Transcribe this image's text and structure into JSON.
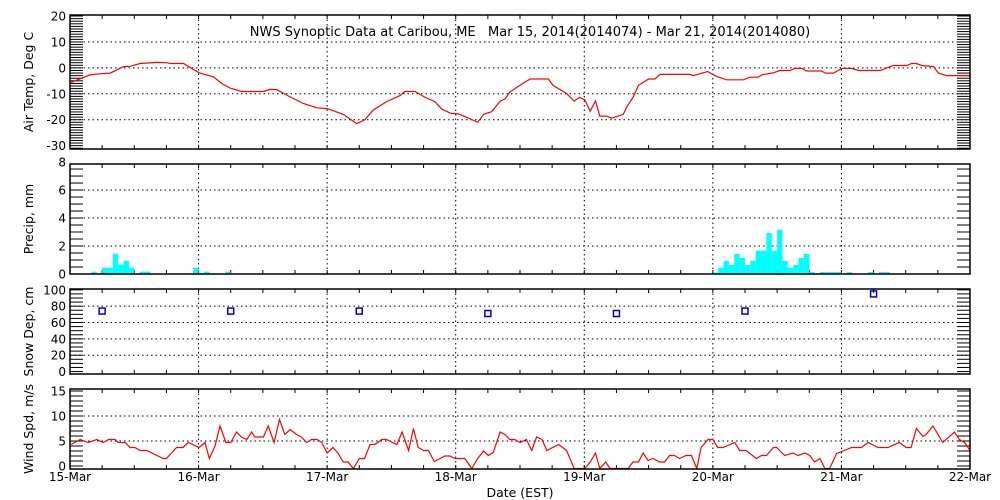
{
  "chart_data": [
    {
      "id": "temp",
      "type": "line",
      "title": "NWS Synoptic Data at Caribou, ME   Mar 15, 2014(2014074) - Mar 21, 2014(2014080)",
      "ylabel": "Air Temp, Deg C",
      "ylim": [
        -31.3,
        20.4
      ],
      "yticks": [
        20,
        10,
        0,
        -10,
        -20,
        -30
      ],
      "ytick_labels": [
        "20",
        "10",
        "0",
        "-10",
        "-20",
        "-30"
      ],
      "ygrid": [
        10,
        0,
        -10,
        -20
      ],
      "yminor": 1,
      "x_units": "hours since 15-Mar 00:00 EST",
      "color": "#ff0000",
      "points": [
        [
          0.2,
          -5.6
        ],
        [
          3.7,
          -2.7
        ],
        [
          5.6,
          -2.3
        ],
        [
          7.5,
          -2
        ],
        [
          10,
          0.5
        ],
        [
          11.2,
          0.6
        ],
        [
          13.1,
          1.7
        ],
        [
          16.2,
          2.1
        ],
        [
          18,
          2
        ],
        [
          18.7,
          1.7
        ],
        [
          21.2,
          1.7
        ],
        [
          22.7,
          -0.2
        ],
        [
          24.1,
          -1.9
        ],
        [
          26.8,
          -3.5
        ],
        [
          28.3,
          -6
        ],
        [
          29.9,
          -7.8
        ],
        [
          32,
          -9.1
        ],
        [
          36.1,
          -9.1
        ],
        [
          37.3,
          -8.3
        ],
        [
          38.6,
          -8.4
        ],
        [
          41,
          -11.1
        ],
        [
          43.6,
          -13.8
        ],
        [
          46.1,
          -15.4
        ],
        [
          48,
          -15.7
        ],
        [
          51,
          -17.9
        ],
        [
          53.5,
          -21.5
        ],
        [
          55,
          -20.1
        ],
        [
          56.6,
          -16.3
        ],
        [
          59.1,
          -13
        ],
        [
          61.6,
          -10.7
        ],
        [
          62.5,
          -9.1
        ],
        [
          64.4,
          -9.1
        ],
        [
          66.3,
          -11.4
        ],
        [
          68.1,
          -13
        ],
        [
          69.4,
          -15.9
        ],
        [
          71,
          -17.5
        ],
        [
          72.5,
          -17.8
        ],
        [
          74.1,
          -19.1
        ],
        [
          76.1,
          -21
        ],
        [
          77.2,
          -17.9
        ],
        [
          78.7,
          -16.9
        ],
        [
          80.3,
          -12.8
        ],
        [
          81.2,
          -12
        ],
        [
          82.1,
          -9.3
        ],
        [
          84,
          -6.7
        ],
        [
          85.9,
          -4.3
        ],
        [
          89.3,
          -4.3
        ],
        [
          90.2,
          -6.8
        ],
        [
          92.7,
          -9.9
        ],
        [
          94.1,
          -12.8
        ],
        [
          95.1,
          -11.4
        ],
        [
          96.1,
          -12.3
        ],
        [
          97.1,
          -16.7
        ],
        [
          98.1,
          -12.8
        ],
        [
          98.9,
          -18.6
        ],
        [
          100.2,
          -18.6
        ],
        [
          101.1,
          -19.4
        ],
        [
          103.3,
          -17.9
        ],
        [
          103.9,
          -15.1
        ],
        [
          105.1,
          -11.4
        ],
        [
          106.1,
          -6.8
        ],
        [
          108,
          -4.3
        ],
        [
          109.2,
          -4.3
        ],
        [
          110.1,
          -2.5
        ],
        [
          115.7,
          -2.5
        ],
        [
          116.4,
          -3
        ],
        [
          119,
          -1.4
        ],
        [
          120.7,
          -3.3
        ],
        [
          122.6,
          -4.6
        ],
        [
          125.7,
          -4.6
        ],
        [
          126.9,
          -3.6
        ],
        [
          128.5,
          -3.6
        ],
        [
          129.1,
          -2.7
        ],
        [
          131.3,
          -1.9
        ],
        [
          132.5,
          -1
        ],
        [
          134.4,
          -1
        ],
        [
          135.3,
          -0.2
        ],
        [
          136.6,
          -0.2
        ],
        [
          137.5,
          -1.2
        ],
        [
          140.3,
          -1.2
        ],
        [
          141,
          -2
        ],
        [
          142.5,
          -2
        ],
        [
          144.1,
          -0.2
        ],
        [
          145.9,
          -0.2
        ],
        [
          147.2,
          -1
        ],
        [
          151.2,
          -1
        ],
        [
          153.7,
          0.9
        ],
        [
          156.2,
          0.9
        ],
        [
          157.1,
          1.7
        ],
        [
          158,
          1.7
        ],
        [
          159,
          0.9
        ],
        [
          161.2,
          0.5
        ],
        [
          162.1,
          -2
        ],
        [
          163.6,
          -3
        ],
        [
          168,
          -3
        ]
      ]
    },
    {
      "id": "precip",
      "type": "bar",
      "ylabel": "Precip, mm",
      "ylim": [
        0,
        7.86
      ],
      "yticks": [
        8,
        6,
        4,
        2,
        0
      ],
      "ytick_labels": [
        "8",
        "6",
        "4",
        "2",
        "0"
      ],
      "ygrid": [
        6,
        4,
        2
      ],
      "yminor": 0.5,
      "x_units": "hour bin since 15-Mar 00:00 EST (1-hour bars)",
      "color": "#00ffff",
      "bars": [
        [
          4,
          0.17
        ],
        [
          6,
          0.45
        ],
        [
          7,
          0.45
        ],
        [
          8,
          1.45
        ],
        [
          9,
          0.67
        ],
        [
          10,
          0.95
        ],
        [
          11,
          0.45
        ],
        [
          13,
          0.17
        ],
        [
          14,
          0.17
        ],
        [
          23,
          0.45
        ],
        [
          25,
          0.17
        ],
        [
          29,
          0.17
        ],
        [
          120,
          0.1
        ],
        [
          121,
          0.45
        ],
        [
          122,
          0.93
        ],
        [
          123,
          0.64
        ],
        [
          124,
          1.43
        ],
        [
          125,
          1.14
        ],
        [
          126,
          0.64
        ],
        [
          127,
          0.93
        ],
        [
          128,
          1.67
        ],
        [
          129,
          1.67
        ],
        [
          130,
          2.93
        ],
        [
          131,
          1.67
        ],
        [
          132,
          3.17
        ],
        [
          133,
          0.93
        ],
        [
          134,
          0.45
        ],
        [
          135,
          0.64
        ],
        [
          136,
          1.14
        ],
        [
          137,
          1.43
        ],
        [
          138,
          0.14
        ],
        [
          140,
          0.14
        ],
        [
          141,
          0.14
        ],
        [
          142,
          0.14
        ],
        [
          143,
          0.14
        ],
        [
          145,
          0.14
        ],
        [
          149,
          0.14
        ],
        [
          151,
          0.14
        ],
        [
          152,
          0.14
        ]
      ]
    },
    {
      "id": "snow",
      "type": "scatter",
      "ylabel": "Snow Dep, cm",
      "ylim": [
        -3,
        101
      ],
      "yticks": [
        100,
        80,
        60,
        40,
        20,
        0
      ],
      "ytick_labels": [
        "100",
        "80",
        "60",
        "40",
        "20",
        "0"
      ],
      "ygrid": [
        80,
        60,
        40,
        20
      ],
      "yminor": 5,
      "x_units": "hours since 15-Mar 00:00 EST",
      "color": "#0000cc",
      "points": [
        [
          6,
          74
        ],
        [
          30,
          74
        ],
        [
          54,
          74
        ],
        [
          78,
          71
        ],
        [
          102,
          71
        ],
        [
          126,
          74
        ],
        [
          150,
          95
        ]
      ]
    },
    {
      "id": "wind",
      "type": "line",
      "ylabel": "Wind Spd, m/s",
      "ylim": [
        -0.6,
        15.4
      ],
      "yticks": [
        15,
        10,
        5,
        0
      ],
      "ytick_labels": [
        "15",
        "10",
        "5",
        "0"
      ],
      "ygrid": [
        10,
        5
      ],
      "yminor": 1,
      "x_units": "hours since 15-Mar 00:00 EST",
      "color": "#ff0000",
      "xlabel": "Date (EST)",
      "xtick_labels": [
        "15-Mar",
        "16-Mar",
        "17-Mar",
        "18-Mar",
        "19-Mar",
        "20-Mar",
        "21-Mar",
        "22-Mar"
      ],
      "points": [
        [
          0.2,
          4.3
        ],
        [
          1.9,
          5.3
        ],
        [
          3.4,
          4.7
        ],
        [
          5,
          5.3
        ],
        [
          6.2,
          4.7
        ],
        [
          7.2,
          5.3
        ],
        [
          8.4,
          5.3
        ],
        [
          9,
          4.7
        ],
        [
          10.3,
          4.7
        ],
        [
          11.2,
          3.7
        ],
        [
          12.1,
          3.7
        ],
        [
          13.1,
          3.1
        ],
        [
          14.3,
          3.1
        ],
        [
          17.4,
          1.5
        ],
        [
          18,
          1.5
        ],
        [
          19.9,
          3.7
        ],
        [
          21.1,
          3.7
        ],
        [
          22.1,
          4.7
        ],
        [
          24.1,
          3.7
        ],
        [
          25.2,
          4.7
        ],
        [
          26,
          1.5
        ],
        [
          27.1,
          4.1
        ],
        [
          28,
          8
        ],
        [
          29.1,
          4.7
        ],
        [
          30,
          4.7
        ],
        [
          31.1,
          6.8
        ],
        [
          32,
          5.8
        ],
        [
          33,
          5.3
        ],
        [
          33.9,
          6.8
        ],
        [
          34.5,
          5.8
        ],
        [
          36.1,
          5.8
        ],
        [
          37,
          8
        ],
        [
          38.1,
          4.7
        ],
        [
          39.1,
          9.3
        ],
        [
          40.1,
          6.3
        ],
        [
          41.1,
          7.3
        ],
        [
          42.3,
          6.3
        ],
        [
          43.2,
          5.8
        ],
        [
          44.2,
          4.7
        ],
        [
          45.1,
          5.3
        ],
        [
          46.1,
          5.3
        ],
        [
          47,
          4.7
        ],
        [
          48,
          2.6
        ],
        [
          49.1,
          3.7
        ],
        [
          50,
          2.6
        ],
        [
          51,
          0.8
        ],
        [
          51.9,
          0.8
        ],
        [
          52.9,
          -0.5
        ],
        [
          54,
          1.5
        ],
        [
          55,
          1.5
        ],
        [
          56,
          4.3
        ],
        [
          56.9,
          4.3
        ],
        [
          58.2,
          5.3
        ],
        [
          59.1,
          5.3
        ],
        [
          61,
          4.3
        ],
        [
          62,
          6.8
        ],
        [
          63.2,
          3.1
        ],
        [
          64.1,
          7.5
        ],
        [
          65,
          3.7
        ],
        [
          66,
          3.1
        ],
        [
          66.9,
          3.1
        ],
        [
          68,
          0.9
        ],
        [
          70,
          2
        ],
        [
          70.9,
          2
        ],
        [
          71.9,
          1.5
        ],
        [
          73.7,
          1.5
        ],
        [
          75,
          -0.5
        ],
        [
          76.1,
          1.5
        ],
        [
          77.2,
          3
        ],
        [
          78.1,
          2.1
        ],
        [
          79,
          2.7
        ],
        [
          80.3,
          6.8
        ],
        [
          81.2,
          6.3
        ],
        [
          82.1,
          5.3
        ],
        [
          83,
          5.3
        ],
        [
          84,
          4.7
        ],
        [
          85.2,
          5.3
        ],
        [
          86.2,
          3.1
        ],
        [
          87.1,
          5.8
        ],
        [
          88.1,
          5.3
        ],
        [
          89,
          3.1
        ],
        [
          91.2,
          4.3
        ],
        [
          92.7,
          3.1
        ],
        [
          94.1,
          -0.5
        ],
        [
          96.1,
          -0.5
        ],
        [
          97.1,
          0.8
        ],
        [
          98.1,
          2.6
        ],
        [
          98.9,
          -0.5
        ],
        [
          100,
          0.8
        ],
        [
          100.8,
          -0.5
        ],
        [
          104.2,
          -0.5
        ],
        [
          105.1,
          0.8
        ],
        [
          106.1,
          0.8
        ],
        [
          107,
          2.6
        ],
        [
          107.9,
          1.1
        ],
        [
          108.8,
          1.5
        ],
        [
          110.1,
          0.8
        ],
        [
          111,
          0.8
        ],
        [
          111.9,
          2.1
        ],
        [
          112.8,
          2.1
        ],
        [
          113.8,
          1.5
        ],
        [
          115,
          2.1
        ],
        [
          116,
          2.1
        ],
        [
          117,
          -0.5
        ],
        [
          117.8,
          3.7
        ],
        [
          119.1,
          5.3
        ],
        [
          120,
          5.3
        ],
        [
          120.9,
          3.7
        ],
        [
          121.9,
          3.7
        ],
        [
          124.1,
          4.7
        ],
        [
          125,
          3.1
        ],
        [
          126.2,
          3.1
        ],
        [
          128.1,
          1.5
        ],
        [
          129.1,
          2.1
        ],
        [
          130,
          2.1
        ],
        [
          131.3,
          3.7
        ],
        [
          131.9,
          3.7
        ],
        [
          133.4,
          2.1
        ],
        [
          135,
          2.6
        ],
        [
          135.9,
          2.1
        ],
        [
          137.2,
          2.6
        ],
        [
          138.1,
          2.1
        ],
        [
          139,
          0.8
        ],
        [
          140,
          1.5
        ],
        [
          140.9,
          -0.5
        ],
        [
          141.8,
          -0.5
        ],
        [
          143.1,
          2.5
        ],
        [
          144.3,
          3
        ],
        [
          145.9,
          3.7
        ],
        [
          147.7,
          3.7
        ],
        [
          149,
          4.7
        ],
        [
          150.8,
          3.7
        ],
        [
          152.7,
          3.7
        ],
        [
          154.8,
          4.7
        ],
        [
          156.1,
          3.7
        ],
        [
          157,
          3.7
        ],
        [
          158,
          7.5
        ],
        [
          159.2,
          5.9
        ],
        [
          159.8,
          6.3
        ],
        [
          161.1,
          8
        ],
        [
          162.9,
          4.7
        ],
        [
          165.1,
          6.8
        ],
        [
          166,
          5.3
        ],
        [
          167,
          4.7
        ],
        [
          168,
          3.1
        ]
      ]
    }
  ],
  "xlim_hours": [
    0,
    168
  ]
}
